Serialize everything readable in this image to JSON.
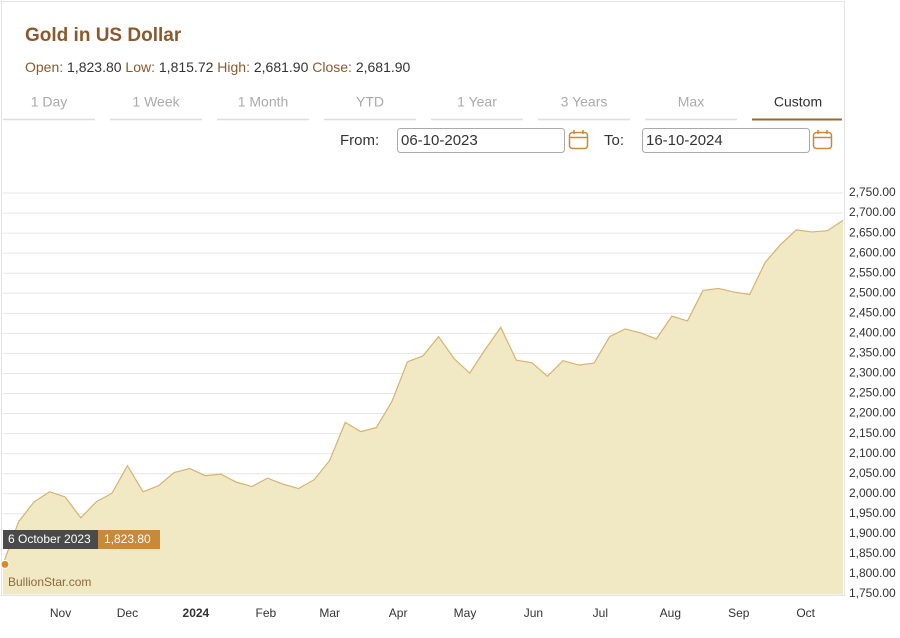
{
  "header": {
    "title": "Gold in US Dollar",
    "stats": [
      {
        "label": "Open:",
        "value": "1,823.80"
      },
      {
        "label": "Low:",
        "value": "1,815.72"
      },
      {
        "label": "High:",
        "value": "2,681.90"
      },
      {
        "label": "Close:",
        "value": "2,681.90"
      }
    ]
  },
  "tabs": [
    "1 Day",
    "1 Week",
    "1 Month",
    "YTD",
    "1 Year",
    "3 Years",
    "Max",
    "Custom"
  ],
  "active_tab": 7,
  "date_range": {
    "from": {
      "label": "From:",
      "value": "06-10-2023"
    },
    "to": {
      "label": "To:",
      "value": "16-10-2024"
    }
  },
  "tooltip": {
    "date": "6 October 2023",
    "value": "1,823.80"
  },
  "watermark": "BullionStar.com",
  "chart_data": {
    "type": "area",
    "color": "#d6b36e",
    "fill_color": "#f1e8c4",
    "values": [
      1823.8,
      1930,
      1980,
      2005,
      1992,
      1940,
      1980,
      2001,
      2070,
      2005,
      2020,
      2053,
      2063,
      2045,
      2049,
      2029,
      2018,
      2039,
      2024,
      2013,
      2035,
      2083,
      2178,
      2155,
      2165,
      2230,
      2329,
      2344,
      2392,
      2337,
      2301,
      2360,
      2415,
      2333,
      2327,
      2293,
      2332,
      2321,
      2326,
      2392,
      2411,
      2401,
      2386,
      2443,
      2431,
      2507,
      2512,
      2503,
      2497,
      2577,
      2622,
      2658,
      2653,
      2656,
      2681.9
    ],
    "xlim": [
      0,
      54
    ],
    "xticks": [
      {
        "value": 3.7,
        "label": "Nov"
      },
      {
        "value": 8,
        "label": "Dec"
      },
      {
        "value": 12.4,
        "label": "2024"
      },
      {
        "value": 16.9,
        "label": "Feb"
      },
      {
        "value": 21,
        "label": "Mar"
      },
      {
        "value": 25.4,
        "label": "Apr"
      },
      {
        "value": 29.7,
        "label": "May"
      },
      {
        "value": 34.1,
        "label": "Jun"
      },
      {
        "value": 38.4,
        "label": "Jul"
      },
      {
        "value": 42.9,
        "label": "Aug"
      },
      {
        "value": 47.3,
        "label": "Sep"
      },
      {
        "value": 51.6,
        "label": "Oct"
      }
    ],
    "ylim": [
      1750,
      2775
    ],
    "yticks": [
      {
        "value": 1750,
        "label": "1,750.00"
      },
      {
        "value": 1800,
        "label": "1,800.00"
      },
      {
        "value": 1850,
        "label": "1,850.00"
      },
      {
        "value": 1900,
        "label": "1,900.00"
      },
      {
        "value": 1950,
        "label": "1,950.00"
      },
      {
        "value": 2000,
        "label": "2,000.00"
      },
      {
        "value": 2050,
        "label": "2,050.00"
      },
      {
        "value": 2100,
        "label": "2,100.00"
      },
      {
        "value": 2150,
        "label": "2,150.00"
      },
      {
        "value": 2200,
        "label": "2,200.00"
      },
      {
        "value": 2250,
        "label": "2,250.00"
      },
      {
        "value": 2300,
        "label": "2,300.00"
      },
      {
        "value": 2350,
        "label": "2,350.00"
      },
      {
        "value": 2400,
        "label": "2,400.00"
      },
      {
        "value": 2450,
        "label": "2,450.00"
      },
      {
        "value": 2500,
        "label": "2,500.00"
      },
      {
        "value": 2550,
        "label": "2,550.00"
      },
      {
        "value": 2600,
        "label": "2,600.00"
      },
      {
        "value": 2650,
        "label": "2,650.00"
      },
      {
        "value": 2700,
        "label": "2,700.00"
      },
      {
        "value": 2750,
        "label": "2,750.00"
      }
    ],
    "grid": true
  }
}
